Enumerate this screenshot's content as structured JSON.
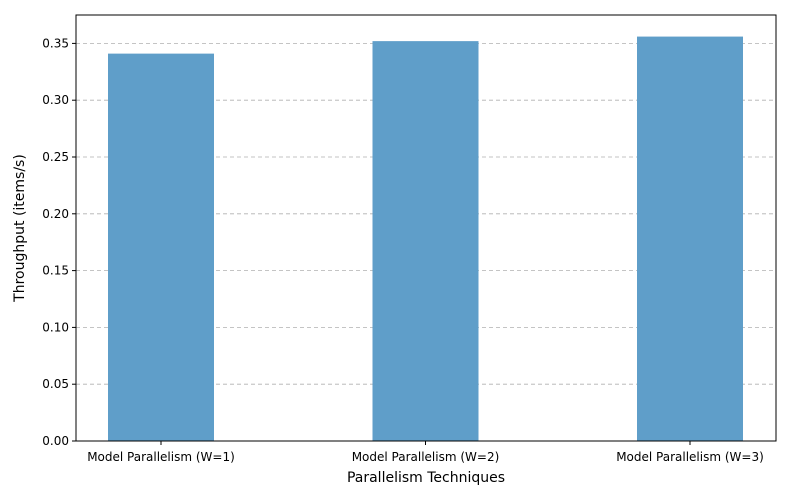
{
  "chart_data": {
    "type": "bar",
    "title": "",
    "categories": [
      "Model Parallelism (W=1)",
      "Model Parallelism (W=2)",
      "Model Parallelism (W=3)"
    ],
    "values": [
      0.341,
      0.352,
      0.356
    ],
    "xlabel": "Parallelism Techniques",
    "ylabel": "Throughput (items/s)",
    "ylim": [
      0,
      0.375
    ],
    "yticks": [
      "0.00",
      "0.05",
      "0.10",
      "0.15",
      "0.20",
      "0.25",
      "0.30",
      "0.35"
    ],
    "grid": "y-dashed",
    "bar_color": "#5f9ec9"
  }
}
